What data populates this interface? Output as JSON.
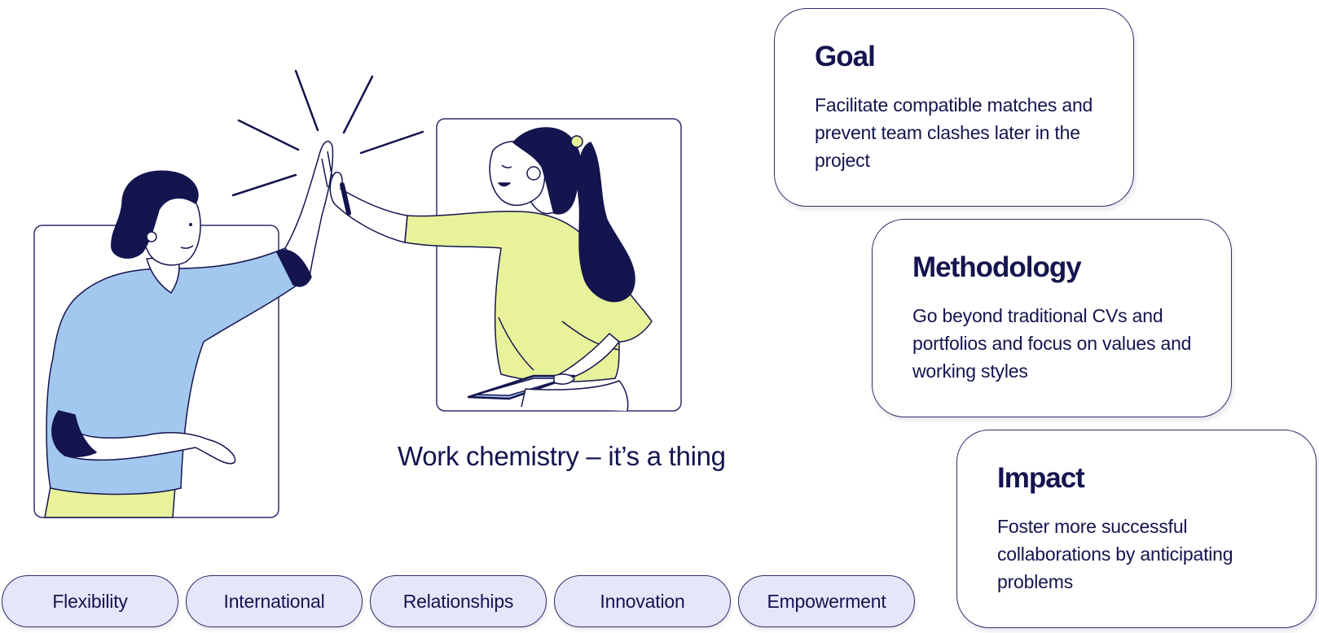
{
  "tagline": "Work chemistry – it’s a thing",
  "cards": {
    "goal": {
      "title": "Goal",
      "text": "Facilitate compatible matches and prevent team clashes later in the project"
    },
    "methodology": {
      "title": "Methodology",
      "text": "Go beyond traditional CVs and portfolios and focus on values and working styles"
    },
    "impact": {
      "title": "Impact",
      "text": "Foster more successful collaborations by anticipating problems"
    }
  },
  "pills": [
    "Flexibility",
    "International",
    "Relationships",
    "Innovation",
    "Empowerment"
  ],
  "colors": {
    "navy": "#14144f",
    "blue_shirt": "#a3c8f0",
    "lime_shirt": "#e8f29a",
    "pill_fill": "#e6e6fb"
  }
}
